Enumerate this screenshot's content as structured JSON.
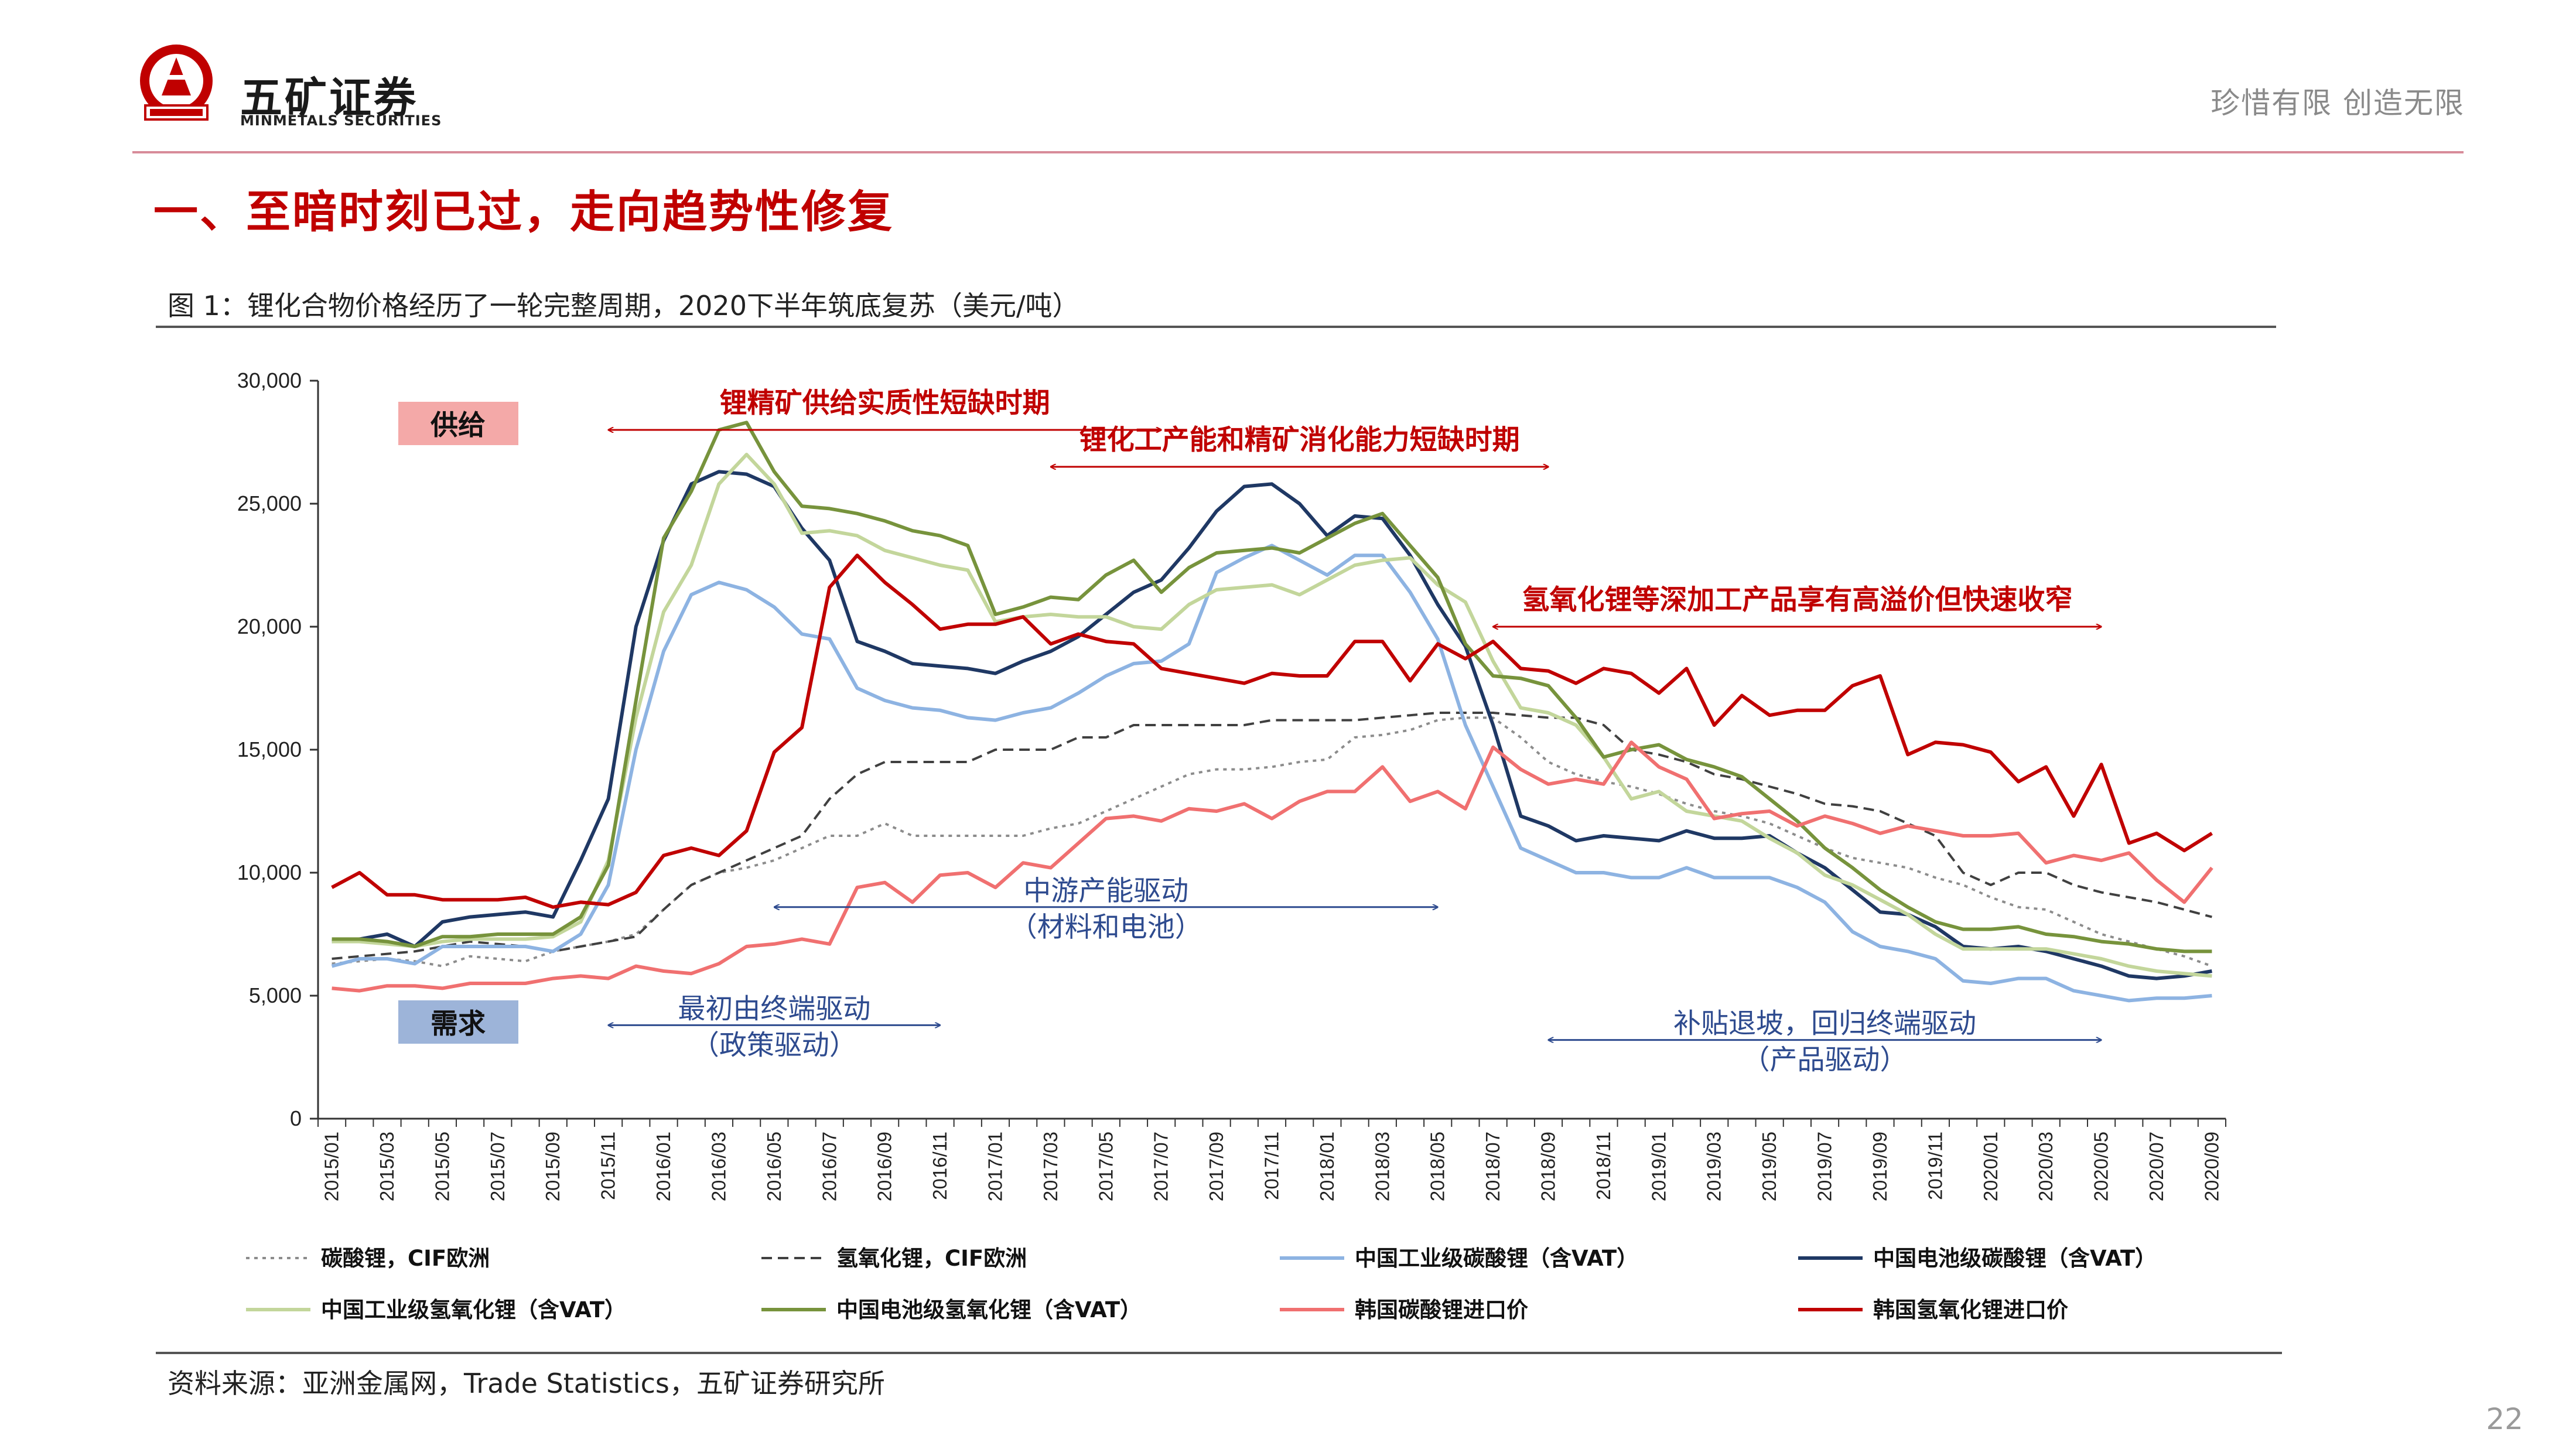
{
  "header": {
    "company_name": "五矿证券",
    "company_en": "MINMETALS SECURITIES",
    "logo_text": "MINMETALS",
    "slogan": "珍惜有限  创造无限"
  },
  "section_title": "一、至暗时刻已过，走向趋势性修复",
  "figure_caption": "图 1：锂化合物价格经历了一轮完整周期，2020下半年筑底复苏（美元/吨）",
  "source": "资料来源：亚洲金属网，Trade Statistics，五矿证券研究所",
  "page_number": "22",
  "colors": {
    "brand_red": "#c00000",
    "anno_blue": "#2e4b8f",
    "supply_box": "#f4a9a8",
    "demand_box": "#9db4d9"
  },
  "boxes": {
    "supply": "供给",
    "demand": "需求"
  },
  "annotations": {
    "red": [
      {
        "text": "锂精矿供给实质性短缺时期",
        "from": "2015/11",
        "to": "2017/07",
        "level": 28000
      },
      {
        "text": "锂化工产能和精矿消化能力短缺时期",
        "from": "2017/03",
        "to": "2018/09",
        "level": 26500
      },
      {
        "text": "氢氧化锂等深加工产品享有高溢价但快速收窄",
        "from": "2018/07",
        "to": "2020/05",
        "level": 20000
      }
    ],
    "blue": [
      {
        "line1": "最初由终端驱动",
        "line2": "（政策驱动）",
        "from": "2015/11",
        "to": "2016/11",
        "level": 3800
      },
      {
        "line1": "中游产能驱动",
        "line2": "（材料和电池）",
        "from": "2016/05",
        "to": "2018/05",
        "level": 8600
      },
      {
        "line1": "补贴退坡，回归终端驱动",
        "line2": "（产品驱动）",
        "from": "2018/09",
        "to": "2020/05",
        "level": 3200
      }
    ]
  },
  "chart_data": {
    "type": "line",
    "title": "",
    "xlabel": "",
    "ylabel": "",
    "ylim": [
      0,
      30000
    ],
    "yticks": [
      "0",
      "5,000",
      "10,000",
      "15,000",
      "20,000",
      "25,000",
      "30,000"
    ],
    "ytick_values": [
      0,
      5000,
      10000,
      15000,
      20000,
      25000,
      30000
    ],
    "x": [
      "2015/01",
      "2015/02",
      "2015/03",
      "2015/04",
      "2015/05",
      "2015/06",
      "2015/07",
      "2015/08",
      "2015/09",
      "2015/10",
      "2015/11",
      "2015/12",
      "2016/01",
      "2016/02",
      "2016/03",
      "2016/04",
      "2016/05",
      "2016/06",
      "2016/07",
      "2016/08",
      "2016/09",
      "2016/10",
      "2016/11",
      "2016/12",
      "2017/01",
      "2017/02",
      "2017/03",
      "2017/04",
      "2017/05",
      "2017/06",
      "2017/07",
      "2017/08",
      "2017/09",
      "2017/10",
      "2017/11",
      "2017/12",
      "2018/01",
      "2018/02",
      "2018/03",
      "2018/04",
      "2018/05",
      "2018/06",
      "2018/07",
      "2018/08",
      "2018/09",
      "2018/10",
      "2018/11",
      "2018/12",
      "2019/01",
      "2019/02",
      "2019/03",
      "2019/04",
      "2019/05",
      "2019/06",
      "2019/07",
      "2019/08",
      "2019/09",
      "2019/10",
      "2019/11",
      "2019/12",
      "2020/01",
      "2020/02",
      "2020/03",
      "2020/04",
      "2020/05",
      "2020/06",
      "2020/07",
      "2020/08",
      "2020/09"
    ],
    "xtick_labels": [
      "2015/01",
      "2015/03",
      "2015/05",
      "2015/07",
      "2015/09",
      "2015/11",
      "2016/01",
      "2016/03",
      "2016/05",
      "2016/07",
      "2016/09",
      "2016/11",
      "2017/01",
      "2017/03",
      "2017/05",
      "2017/07",
      "2017/09",
      "2017/11",
      "2018/01",
      "2018/03",
      "2018/05",
      "2018/07",
      "2018/09",
      "2018/11",
      "2019/01",
      "2019/03",
      "2019/05",
      "2019/07",
      "2019/09",
      "2019/11",
      "2020/01",
      "2020/03",
      "2020/05",
      "2020/07",
      "2020/09"
    ],
    "series": [
      {
        "name": "碳酸锂，CIF欧洲",
        "color": "#8c8c8c",
        "dash": "dotted",
        "values": [
          6300,
          6400,
          6500,
          6400,
          6200,
          6600,
          6500,
          6400,
          6800,
          7000,
          7200,
          7500,
          8500,
          9500,
          10000,
          10200,
          10500,
          11000,
          11500,
          11500,
          12000,
          11500,
          11500,
          11500,
          11500,
          11500,
          11800,
          12000,
          12500,
          13000,
          13500,
          14000,
          14200,
          14200,
          14300,
          14500,
          14600,
          15500,
          15600,
          15800,
          16200,
          16300,
          16300,
          15500,
          14500,
          14000,
          13700,
          13500,
          13200,
          12800,
          12500,
          12300,
          12000,
          11500,
          11000,
          10600,
          10400,
          10200,
          9800,
          9500,
          9000,
          8600,
          8500,
          8000,
          7500,
          7200,
          6900,
          6600,
          6200
        ]
      },
      {
        "name": "氢氧化锂，CIF欧洲",
        "color": "#404040",
        "dash": "dashed",
        "values": [
          6500,
          6600,
          6700,
          6800,
          7000,
          7200,
          7100,
          7000,
          6800,
          7000,
          7200,
          7400,
          8500,
          9500,
          10000,
          10500,
          11000,
          11500,
          13000,
          14000,
          14500,
          14500,
          14500,
          14500,
          15000,
          15000,
          15000,
          15500,
          15500,
          16000,
          16000,
          16000,
          16000,
          16000,
          16200,
          16200,
          16200,
          16200,
          16300,
          16400,
          16500,
          16500,
          16500,
          16400,
          16300,
          16300,
          16000,
          15000,
          14800,
          14500,
          14000,
          13800,
          13500,
          13200,
          12800,
          12700,
          12500,
          12000,
          11500,
          10000,
          9500,
          10000,
          10000,
          9500,
          9200,
          9000,
          8800,
          8500,
          8200
        ]
      },
      {
        "name": "中国工业级碳酸锂（含VAT）",
        "color": "#8db3e2",
        "dash": "solid",
        "values": [
          6200,
          6500,
          6500,
          6300,
          7000,
          7000,
          7000,
          7000,
          6800,
          7500,
          9500,
          15000,
          19000,
          21300,
          21800,
          21500,
          20800,
          19700,
          19500,
          17500,
          17000,
          16700,
          16600,
          16300,
          16200,
          16500,
          16700,
          17300,
          18000,
          18500,
          18600,
          19300,
          22200,
          22800,
          23300,
          22700,
          22100,
          22900,
          22900,
          21400,
          19500,
          16000,
          13500,
          11000,
          10500,
          10000,
          10000,
          9800,
          9800,
          10200,
          9800,
          9800,
          9800,
          9400,
          8800,
          7600,
          7000,
          6800,
          6500,
          5600,
          5500,
          5700,
          5700,
          5200,
          5000,
          4800,
          4900,
          4900,
          5000
        ]
      },
      {
        "name": "中国电池级碳酸锂（含VAT）",
        "color": "#1f3864",
        "dash": "solid",
        "values": [
          7200,
          7300,
          7500,
          7000,
          8000,
          8200,
          8300,
          8400,
          8200,
          10500,
          13000,
          20000,
          23500,
          25800,
          26300,
          26200,
          25700,
          24000,
          22700,
          19400,
          19000,
          18500,
          18400,
          18300,
          18100,
          18600,
          19000,
          19600,
          20500,
          21400,
          21900,
          23200,
          24700,
          25700,
          25800,
          25000,
          23700,
          24500,
          24400,
          22900,
          20900,
          19200,
          16000,
          12300,
          11900,
          11300,
          11500,
          11400,
          11300,
          11700,
          11400,
          11400,
          11500,
          10800,
          10200,
          9300,
          8400,
          8300,
          7800,
          7000,
          6900,
          7000,
          6800,
          6500,
          6200,
          5800,
          5700,
          5800,
          6000
        ]
      },
      {
        "name": "中国工业级氢氧化锂（含VAT）",
        "color": "#c3d69b",
        "dash": "solid",
        "values": [
          7200,
          7200,
          7100,
          7000,
          7200,
          7300,
          7300,
          7300,
          7400,
          8000,
          10500,
          16300,
          20600,
          22500,
          25800,
          27000,
          25800,
          23800,
          23900,
          23700,
          23100,
          22800,
          22500,
          22300,
          20200,
          20400,
          20500,
          20400,
          20400,
          20000,
          19900,
          20900,
          21500,
          21600,
          21700,
          21300,
          21900,
          22500,
          22700,
          22800,
          21700,
          21000,
          18600,
          16700,
          16500,
          16000,
          14700,
          13000,
          13300,
          12500,
          12300,
          12100,
          11400,
          10800,
          9900,
          9500,
          8900,
          8300,
          7500,
          6900,
          6900,
          6900,
          6900,
          6700,
          6500,
          6200,
          6000,
          5900,
          5800
        ]
      },
      {
        "name": "中国电池级氢氧化锂（含VAT）",
        "color": "#77933c",
        "dash": "solid",
        "values": [
          7300,
          7300,
          7200,
          7000,
          7400,
          7400,
          7500,
          7500,
          7500,
          8200,
          10300,
          17000,
          23600,
          25500,
          28000,
          28300,
          26300,
          24900,
          24800,
          24600,
          24300,
          23900,
          23700,
          23300,
          20500,
          20800,
          21200,
          21100,
          22100,
          22700,
          21400,
          22400,
          23000,
          23100,
          23200,
          23000,
          23600,
          24200,
          24600,
          23300,
          22000,
          19300,
          18000,
          17900,
          17600,
          16300,
          14700,
          15000,
          15200,
          14600,
          14300,
          13900,
          13000,
          12100,
          11000,
          10200,
          9300,
          8600,
          8000,
          7700,
          7700,
          7800,
          7500,
          7400,
          7200,
          7100,
          6900,
          6800,
          6800
        ]
      },
      {
        "name": "韩国碳酸锂进口价",
        "color": "#f07070",
        "dash": "solid",
        "values": [
          5300,
          5200,
          5400,
          5400,
          5300,
          5500,
          5500,
          5500,
          5700,
          5800,
          5700,
          6200,
          6000,
          5900,
          6300,
          7000,
          7100,
          7300,
          7100,
          9400,
          9600,
          8800,
          9900,
          10000,
          9400,
          10400,
          10200,
          11200,
          12200,
          12300,
          12100,
          12600,
          12500,
          12800,
          12200,
          12900,
          13300,
          13300,
          14300,
          12900,
          13300,
          12600,
          15100,
          14200,
          13600,
          13800,
          13600,
          15300,
          14300,
          13800,
          12200,
          12400,
          12500,
          11900,
          12300,
          12000,
          11600,
          11900,
          11700,
          11500,
          11500,
          11600,
          10400,
          10700,
          10500,
          10800,
          9700,
          8800,
          10200
        ]
      },
      {
        "name": "韩国氢氧化锂进口价",
        "color": "#c00000",
        "dash": "solid",
        "values": [
          9400,
          10000,
          9100,
          9100,
          8900,
          8900,
          8900,
          9000,
          8600,
          8800,
          8700,
          9200,
          10700,
          11000,
          10700,
          11700,
          14900,
          15900,
          21600,
          22900,
          21800,
          20900,
          19900,
          20100,
          20100,
          20400,
          19300,
          19700,
          19400,
          19300,
          18300,
          18100,
          17900,
          17700,
          18100,
          18000,
          18000,
          19400,
          19400,
          17800,
          19300,
          18700,
          19400,
          18300,
          18200,
          17700,
          18300,
          18100,
          17300,
          18300,
          16000,
          17200,
          16400,
          16600,
          16600,
          17600,
          18000,
          14800,
          15300,
          15200,
          14900,
          13700,
          14300,
          12300,
          14400,
          11200,
          11600,
          10900,
          11600
        ]
      }
    ]
  }
}
